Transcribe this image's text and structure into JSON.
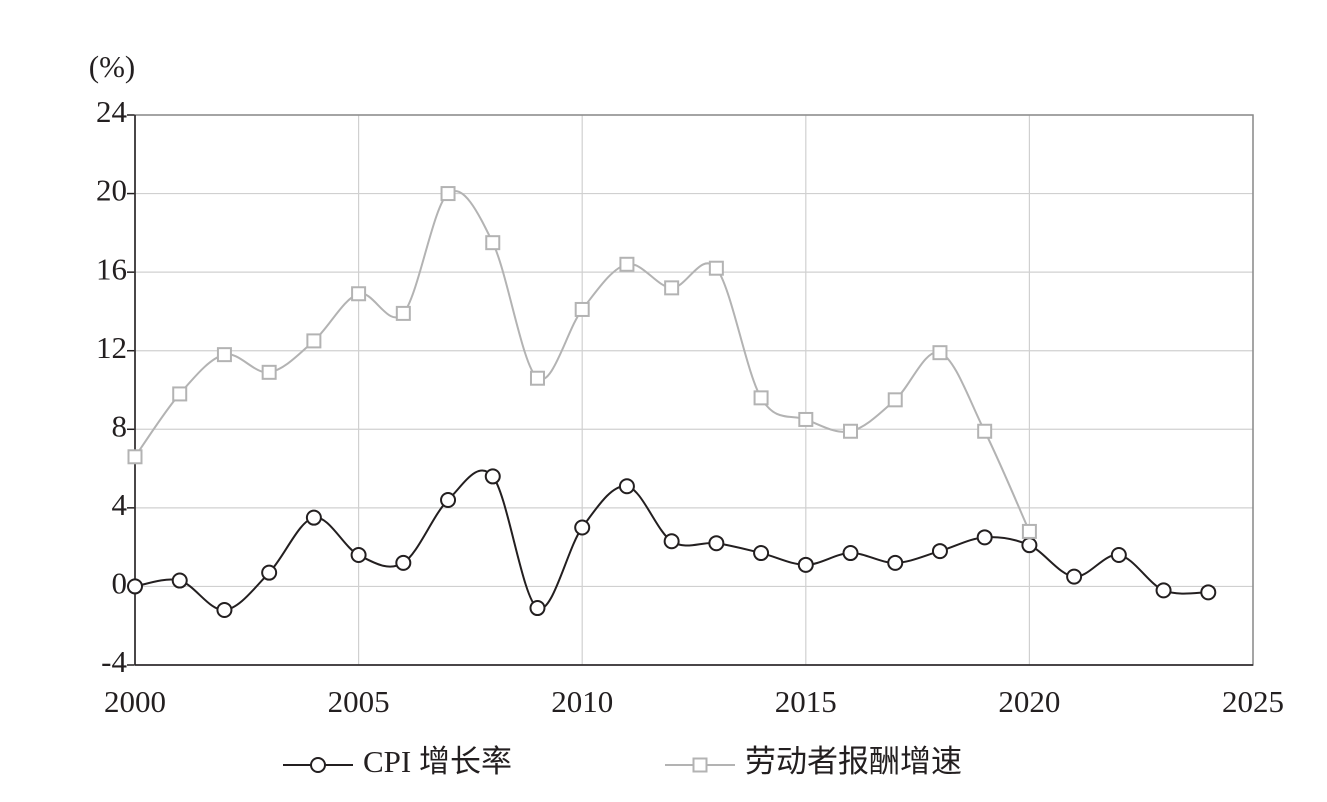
{
  "chart_data": {
    "type": "line",
    "y_unit": "(%)",
    "x": [
      2000,
      2001,
      2002,
      2003,
      2004,
      2005,
      2006,
      2007,
      2008,
      2009,
      2010,
      2011,
      2012,
      2013,
      2014,
      2015,
      2016,
      2017,
      2018,
      2019,
      2020,
      2021,
      2022,
      2023,
      2024
    ],
    "series": [
      {
        "name": "CPI 增长率",
        "color": "#231f20",
        "marker": "circle",
        "values": [
          0,
          0.3,
          -1.2,
          0.7,
          3.5,
          1.6,
          1.2,
          4.4,
          5.6,
          -1.1,
          3.0,
          5.1,
          2.3,
          2.2,
          1.7,
          1.1,
          1.7,
          1.2,
          1.8,
          2.5,
          2.1,
          0.5,
          1.6,
          -0.2,
          -0.3
        ]
      },
      {
        "name": "劳动者报酬增速",
        "color": "#b3b3b3",
        "marker": "square",
        "values": [
          6.6,
          9.8,
          11.8,
          10.9,
          12.5,
          14.9,
          13.9,
          20.0,
          17.5,
          10.6,
          14.1,
          16.4,
          15.2,
          16.2,
          9.6,
          8.5,
          7.9,
          9.5,
          11.9,
          7.9,
          2.8,
          null,
          null,
          null,
          null
        ]
      }
    ],
    "xlim": [
      2000,
      2025
    ],
    "xticks": [
      2000,
      2005,
      2010,
      2015,
      2020,
      2025
    ],
    "ylim": [
      -4,
      24
    ],
    "yticks": [
      -4,
      0,
      4,
      8,
      12,
      16,
      20,
      24
    ],
    "grid": true,
    "legend": "bottom"
  }
}
